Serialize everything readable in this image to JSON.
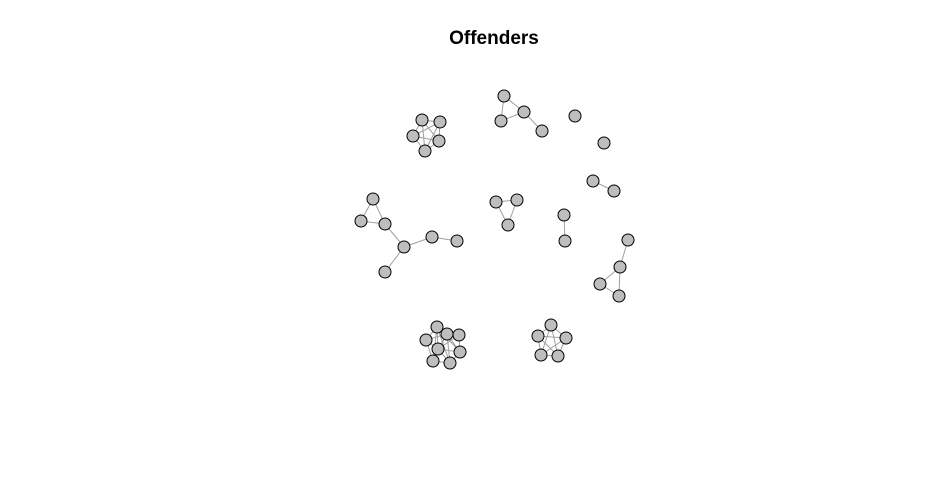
{
  "title": "Offenders",
  "colors": {
    "node_fill": "#bebebe",
    "node_stroke": "#000000",
    "edge": "#a0a0a0",
    "background": "#ffffff"
  }
}
